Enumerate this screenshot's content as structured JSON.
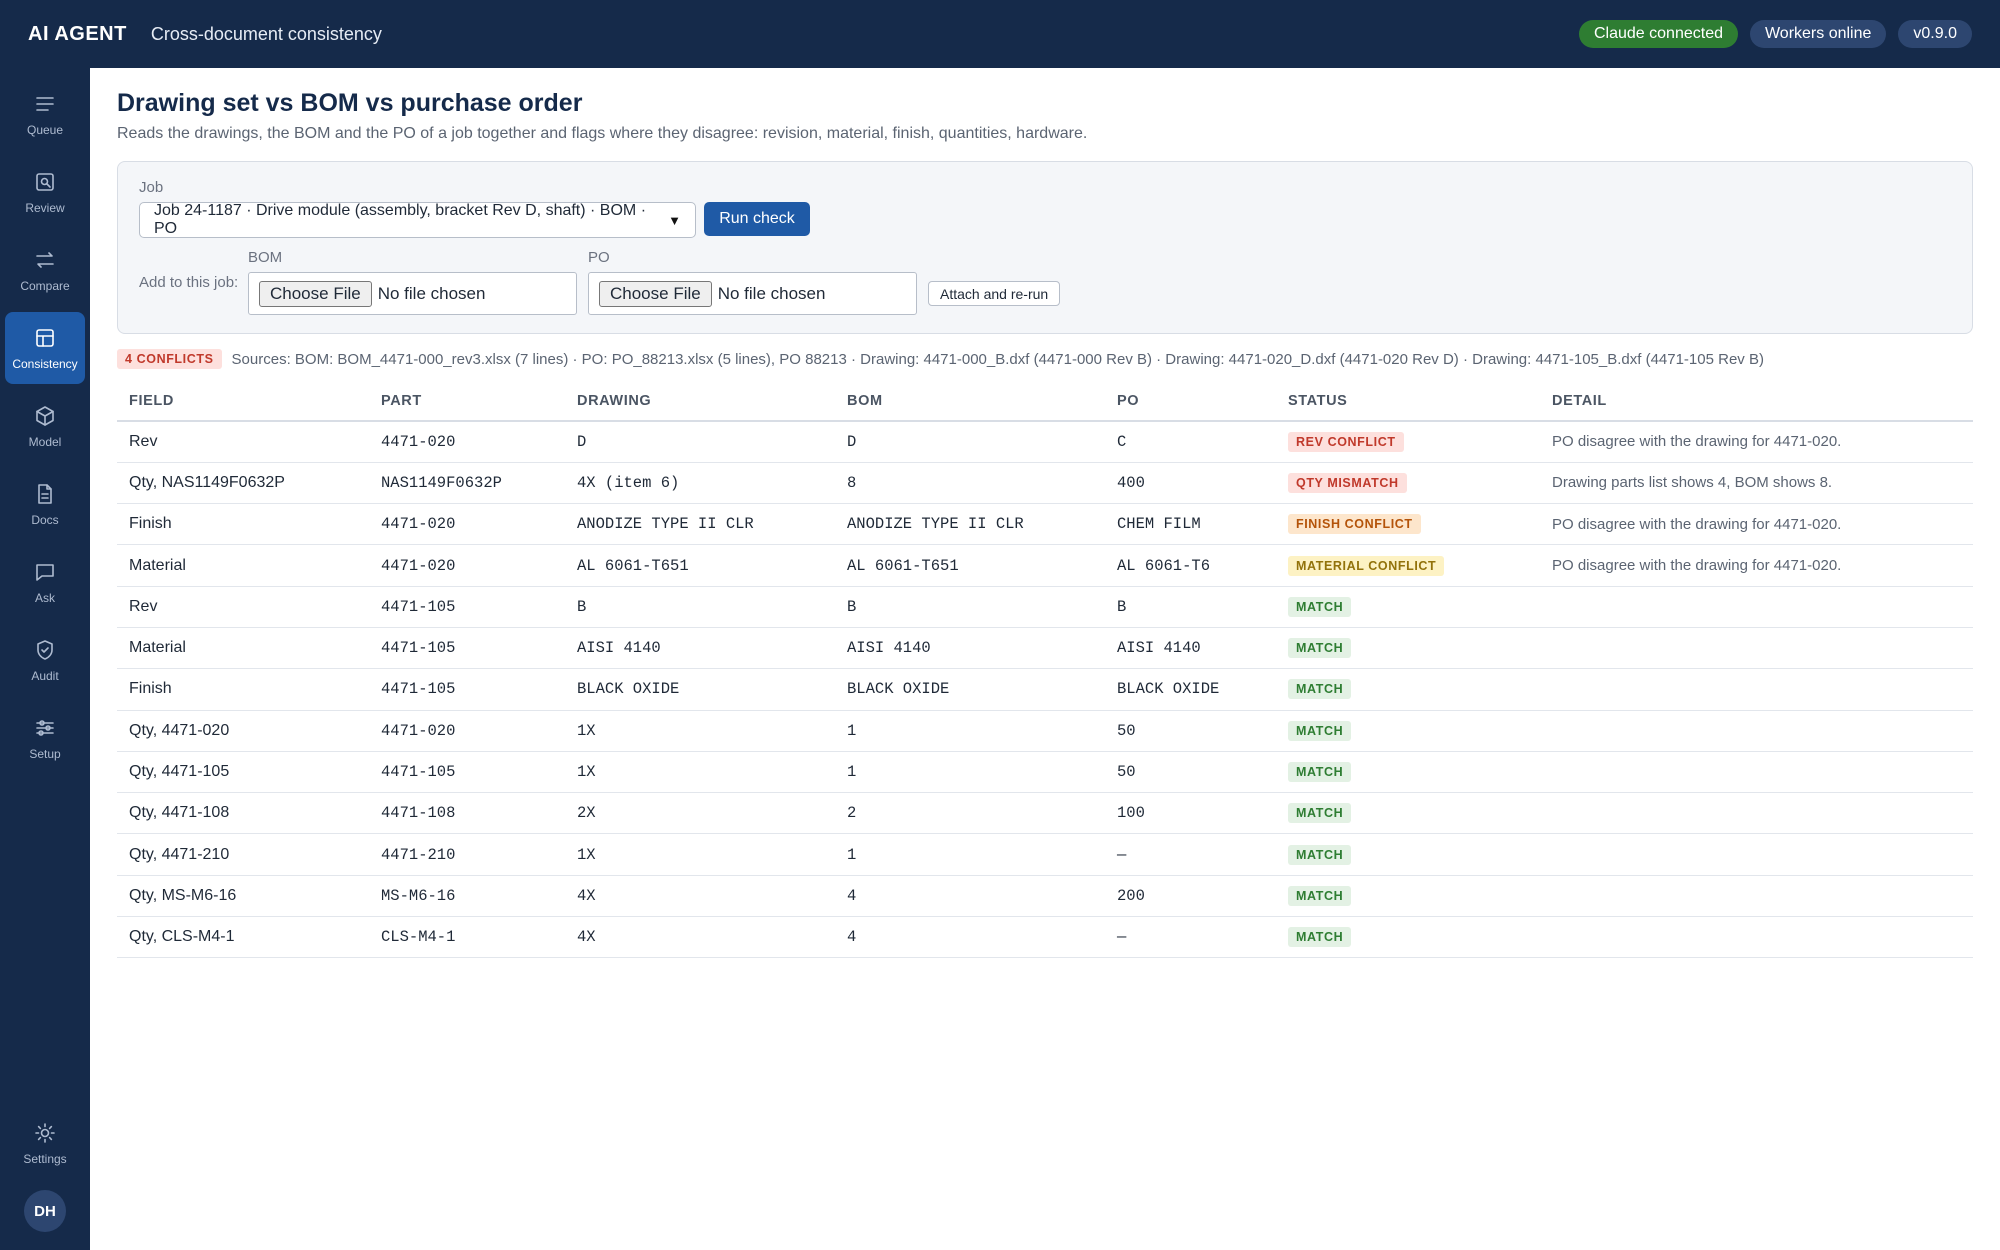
{
  "header": {
    "brand": "AI AGENT",
    "title": "Cross-document consistency",
    "pills": [
      {
        "label": "Claude connected",
        "color": "#2e7d32"
      },
      {
        "label": "Workers online",
        "color": "#2d4670"
      },
      {
        "label": "v0.9.0",
        "color": "#2d4670"
      }
    ]
  },
  "sidebar": {
    "items": [
      {
        "label": "Queue",
        "icon": "menu-icon"
      },
      {
        "label": "Review",
        "icon": "search-doc-icon"
      },
      {
        "label": "Compare",
        "icon": "swap-icon"
      },
      {
        "label": "Consistency",
        "icon": "table-icon",
        "active": true
      },
      {
        "label": "Model",
        "icon": "cube-icon"
      },
      {
        "label": "Docs",
        "icon": "document-icon"
      },
      {
        "label": "Ask",
        "icon": "chat-icon"
      },
      {
        "label": "Audit",
        "icon": "shield-check-icon"
      },
      {
        "label": "Setup",
        "icon": "sliders-icon"
      }
    ],
    "settings_label": "Settings",
    "avatar_initials": "DH"
  },
  "page": {
    "title": "Drawing set vs BOM vs purchase order",
    "subtitle": "Reads the drawings, the BOM and the PO of a job together and flags where they disagree: revision, material, finish, quantities, hardware."
  },
  "form": {
    "job_label": "Job",
    "job_value": "Job 24-1187 · Drive module (assembly, bracket Rev D, shaft) · BOM · PO",
    "run_label": "Run check",
    "add_label": "Add to this job:",
    "bom_label": "BOM",
    "po_label": "PO",
    "choose_label": "Choose File",
    "no_file": "No file chosen",
    "attach_label": "Attach and re-run"
  },
  "summary": {
    "conflicts_badge": "4 CONFLICTS",
    "sources": "Sources: BOM: BOM_4471-000_rev3.xlsx (7 lines) · PO: PO_88213.xlsx (5 lines), PO 88213 · Drawing: 4471-000_B.dxf (4471-000 Rev B) · Drawing: 4471-020_D.dxf (4471-020 Rev D) · Drawing: 4471-105_B.dxf (4471-105 Rev B)"
  },
  "table": {
    "headers": [
      "FIELD",
      "PART",
      "DRAWING",
      "BOM",
      "PO",
      "STATUS",
      "DETAIL"
    ],
    "rows": [
      {
        "field": "Rev",
        "part": "4471-020",
        "drawing": "D",
        "bom": "D",
        "po": "C",
        "status": "REV CONFLICT",
        "tone": "red",
        "detail": "PO disagree with the drawing for 4471-020."
      },
      {
        "field": "Qty, NAS1149F0632P",
        "part": "NAS1149F0632P",
        "drawing": "4X (item 6)",
        "bom": "8",
        "po": "400",
        "status": "QTY MISMATCH",
        "tone": "red",
        "detail": "Drawing parts list shows 4, BOM shows 8."
      },
      {
        "field": "Finish",
        "part": "4471-020",
        "drawing": "ANODIZE TYPE II CLR",
        "bom": "ANODIZE TYPE II CLR",
        "po": "CHEM FILM",
        "status": "FINISH CONFLICT",
        "tone": "orange",
        "detail": "PO disagree with the drawing for 4471-020."
      },
      {
        "field": "Material",
        "part": "4471-020",
        "drawing": "AL 6061-T651",
        "bom": "AL 6061-T651",
        "po": "AL 6061-T6",
        "status": "MATERIAL CONFLICT",
        "tone": "yellow",
        "detail": "PO disagree with the drawing for 4471-020."
      },
      {
        "field": "Rev",
        "part": "4471-105",
        "drawing": "B",
        "bom": "B",
        "po": "B",
        "status": "MATCH",
        "tone": "green",
        "detail": ""
      },
      {
        "field": "Material",
        "part": "4471-105",
        "drawing": "AISI 4140",
        "bom": "AISI 4140",
        "po": "AISI 4140",
        "status": "MATCH",
        "tone": "green",
        "detail": ""
      },
      {
        "field": "Finish",
        "part": "4471-105",
        "drawing": "BLACK OXIDE",
        "bom": "BLACK OXIDE",
        "po": "BLACK OXIDE",
        "status": "MATCH",
        "tone": "green",
        "detail": ""
      },
      {
        "field": "Qty, 4471-020",
        "part": "4471-020",
        "drawing": "1X",
        "bom": "1",
        "po": "50",
        "status": "MATCH",
        "tone": "green",
        "detail": ""
      },
      {
        "field": "Qty, 4471-105",
        "part": "4471-105",
        "drawing": "1X",
        "bom": "1",
        "po": "50",
        "status": "MATCH",
        "tone": "green",
        "detail": ""
      },
      {
        "field": "Qty, 4471-108",
        "part": "4471-108",
        "drawing": "2X",
        "bom": "2",
        "po": "100",
        "status": "MATCH",
        "tone": "green",
        "detail": ""
      },
      {
        "field": "Qty, 4471-210",
        "part": "4471-210",
        "drawing": "1X",
        "bom": "1",
        "po": "—",
        "status": "MATCH",
        "tone": "green",
        "detail": ""
      },
      {
        "field": "Qty, MS-M6-16",
        "part": "MS-M6-16",
        "drawing": "4X",
        "bom": "4",
        "po": "200",
        "status": "MATCH",
        "tone": "green",
        "detail": ""
      },
      {
        "field": "Qty, CLS-M4-1",
        "part": "CLS-M4-1",
        "drawing": "4X",
        "bom": "4",
        "po": "—",
        "status": "MATCH",
        "tone": "green",
        "detail": ""
      }
    ]
  }
}
